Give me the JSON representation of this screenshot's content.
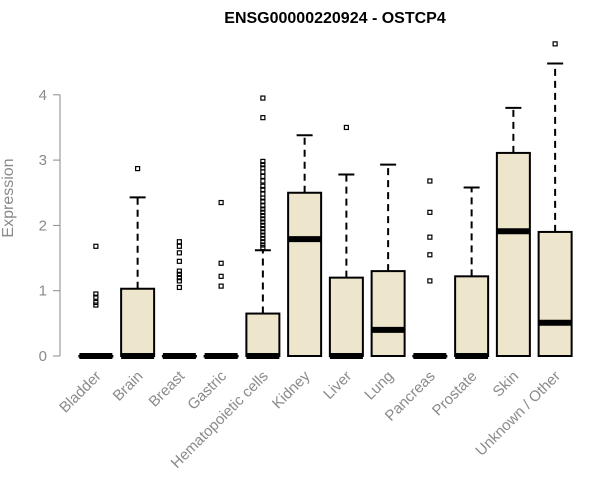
{
  "chart_data": {
    "type": "box",
    "title": "ENSG00000220924 - OSTCP4",
    "ylabel": "Expression",
    "xlabel": "",
    "ylim": [
      0,
      4.8
    ],
    "yticks": [
      0,
      1,
      2,
      3,
      4
    ],
    "grid": false,
    "legend": "none",
    "colors": {
      "box_fill": "#ede5cc",
      "outline": "#000000",
      "axis_text": "#8a8a8a"
    },
    "categories": [
      "Bladder",
      "Brain",
      "Breast",
      "Gastric",
      "Hematopoietic cells",
      "Kidney",
      "Liver",
      "Lung",
      "Pancreas",
      "Prostate",
      "Skin",
      "Unknown / Other"
    ],
    "boxes": [
      {
        "category": "Bladder",
        "q1": 0,
        "median": 0,
        "q3": 0,
        "whisker_low": 0,
        "whisker_high": 0,
        "outliers": [
          1.68,
          0.95,
          0.9,
          0.82,
          0.78
        ]
      },
      {
        "category": "Brain",
        "q1": 0,
        "median": 0,
        "q3": 1.03,
        "whisker_low": 0,
        "whisker_high": 2.43,
        "outliers": [
          2.87
        ]
      },
      {
        "category": "Breast",
        "q1": 0,
        "median": 0,
        "q3": 0,
        "whisker_low": 0,
        "whisker_high": 0,
        "outliers": [
          1.75,
          1.68,
          1.58,
          1.45,
          1.3,
          1.25,
          1.2,
          1.15,
          1.05
        ]
      },
      {
        "category": "Gastric",
        "q1": 0,
        "median": 0,
        "q3": 0,
        "whisker_low": 0,
        "whisker_high": 0,
        "outliers": [
          2.35,
          1.42,
          1.22,
          1.07
        ]
      },
      {
        "category": "Hematopoietic cells",
        "q1": 0,
        "median": 0,
        "q3": 0.65,
        "whisker_low": 0,
        "whisker_high": 1.62,
        "outliers": [
          3.95,
          3.65,
          2.98,
          2.93,
          2.88,
          2.82,
          2.75,
          2.68,
          2.6,
          2.55,
          2.48,
          2.42,
          2.37,
          2.3,
          2.25,
          2.2,
          2.15,
          2.1,
          2.05,
          2.0,
          1.95,
          1.9,
          1.85,
          1.8,
          1.75,
          1.7,
          1.66
        ]
      },
      {
        "category": "Kidney",
        "q1": 0,
        "median": 1.79,
        "q3": 2.5,
        "whisker_low": 0,
        "whisker_high": 3.38,
        "outliers": []
      },
      {
        "category": "Liver",
        "q1": 0,
        "median": 0,
        "q3": 1.2,
        "whisker_low": 0,
        "whisker_high": 2.78,
        "outliers": [
          3.5
        ]
      },
      {
        "category": "Lung",
        "q1": 0,
        "median": 0.4,
        "q3": 1.3,
        "whisker_low": 0,
        "whisker_high": 2.93,
        "outliers": []
      },
      {
        "category": "Pancreas",
        "q1": 0,
        "median": 0,
        "q3": 0,
        "whisker_low": 0,
        "whisker_high": 0,
        "outliers": [
          2.68,
          2.2,
          1.82,
          1.55,
          1.15
        ]
      },
      {
        "category": "Prostate",
        "q1": 0,
        "median": 0,
        "q3": 1.22,
        "whisker_low": 0,
        "whisker_high": 2.58,
        "outliers": []
      },
      {
        "category": "Skin",
        "q1": 0,
        "median": 1.91,
        "q3": 3.11,
        "whisker_low": 0,
        "whisker_high": 3.8,
        "outliers": []
      },
      {
        "category": "Unknown / Other",
        "q1": 0,
        "median": 0.51,
        "q3": 1.9,
        "whisker_low": 0,
        "whisker_high": 4.48,
        "outliers": [
          4.78
        ]
      }
    ]
  }
}
